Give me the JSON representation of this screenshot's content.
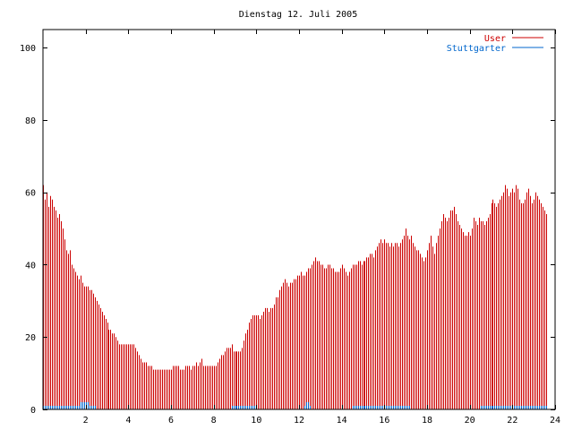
{
  "chart_data": {
    "type": "bar",
    "title": "Dienstag 12. Juli 2005",
    "xlabel": "",
    "ylabel": "",
    "xlim": [
      0,
      24
    ],
    "ylim": [
      0,
      105
    ],
    "x_ticks": [
      2,
      4,
      6,
      8,
      10,
      12,
      14,
      16,
      18,
      20,
      22,
      24
    ],
    "x_tick_labels": [
      "2",
      "4",
      "6",
      "8",
      "10",
      "12",
      "14",
      "16",
      "18",
      "20",
      "22",
      "24"
    ],
    "y_ticks": [
      0,
      20,
      40,
      60,
      80,
      100
    ],
    "y_tick_labels": [
      "0",
      "20",
      "40",
      "60",
      "80",
      "100"
    ],
    "grid": false,
    "legend": "top-right",
    "interval_minutes": 5,
    "series": [
      {
        "name": "User",
        "color": "#cc0000",
        "values": [
          62,
          58,
          60,
          56,
          59,
          58,
          56,
          55,
          53,
          54,
          52,
          50,
          47,
          44,
          43,
          44,
          40,
          39,
          38,
          37,
          36,
          37,
          35,
          34,
          34,
          34,
          33,
          33,
          32,
          31,
          30,
          29,
          28,
          27,
          26,
          25,
          24,
          22,
          22,
          21,
          21,
          20,
          19,
          18,
          18,
          18,
          18,
          18,
          18,
          18,
          18,
          18,
          17,
          16,
          15,
          14,
          13,
          13,
          13,
          12,
          12,
          12,
          11,
          11,
          11,
          11,
          11,
          11,
          11,
          11,
          11,
          11,
          11,
          12,
          12,
          12,
          12,
          11,
          11,
          11,
          12,
          12,
          12,
          11,
          12,
          12,
          13,
          12,
          13,
          14,
          12,
          12,
          12,
          12,
          12,
          12,
          12,
          12,
          13,
          14,
          15,
          15,
          16,
          17,
          17,
          17,
          18,
          16,
          16,
          16,
          16,
          16,
          17,
          19,
          21,
          22,
          24,
          25,
          26,
          26,
          26,
          26,
          25,
          26,
          27,
          28,
          28,
          27,
          28,
          28,
          29,
          31,
          31,
          33,
          34,
          35,
          36,
          35,
          34,
          35,
          35,
          36,
          36,
          37,
          37,
          38,
          37,
          37,
          38,
          39,
          39,
          40,
          41,
          42,
          41,
          41,
          40,
          40,
          39,
          39,
          40,
          40,
          39,
          39,
          38,
          38,
          38,
          39,
          40,
          39,
          38,
          37,
          38,
          39,
          40,
          40,
          40,
          41,
          41,
          40,
          41,
          41,
          42,
          42,
          43,
          43,
          42,
          44,
          45,
          46,
          47,
          46,
          47,
          46,
          46,
          45,
          46,
          45,
          46,
          46,
          45,
          46,
          47,
          48,
          50,
          48,
          47,
          48,
          46,
          45,
          44,
          44,
          43,
          42,
          41,
          42,
          44,
          46,
          48,
          45,
          43,
          46,
          48,
          50,
          52,
          54,
          53,
          52,
          53,
          55,
          55,
          56,
          54,
          52,
          51,
          50,
          49,
          48,
          48,
          49,
          48,
          50,
          53,
          52,
          51,
          53,
          52,
          52,
          51,
          52,
          53,
          54,
          57,
          58,
          57,
          56,
          57,
          58,
          59,
          60,
          62,
          61,
          59,
          60,
          61,
          60,
          62,
          61,
          58,
          57,
          57,
          58,
          60,
          61,
          59,
          57,
          58,
          60,
          59,
          58,
          57,
          56,
          55,
          54
        ]
      },
      {
        "name": "Stuttgarter",
        "color": "#0066cc",
        "values": [
          1,
          1,
          1,
          1,
          1,
          1,
          1,
          1,
          1,
          1,
          1,
          1,
          1,
          1,
          1,
          1,
          1,
          1,
          1,
          1,
          1,
          2,
          2,
          2,
          2,
          2,
          1,
          1,
          1,
          1,
          0,
          0,
          0,
          0,
          0,
          0,
          0,
          0,
          0,
          0,
          0,
          0,
          0,
          0,
          0,
          0,
          0,
          0,
          0,
          0,
          0,
          0,
          0,
          0,
          0,
          0,
          0,
          0,
          0,
          0,
          0,
          0,
          0,
          0,
          0,
          0,
          0,
          0,
          0,
          0,
          0,
          0,
          0,
          0,
          0,
          0,
          0,
          0,
          0,
          0,
          0,
          0,
          0,
          0,
          0,
          0,
          0,
          0,
          0,
          0,
          0,
          0,
          0,
          0,
          0,
          0,
          0,
          0,
          0,
          0,
          0,
          0,
          0,
          0,
          0,
          0,
          1,
          1,
          1,
          1,
          1,
          1,
          1,
          1,
          1,
          1,
          1,
          1,
          1,
          1,
          0,
          0,
          0,
          0,
          0,
          0,
          0,
          0,
          0,
          0,
          0,
          0,
          0,
          0,
          0,
          0,
          0,
          0,
          0,
          0,
          0,
          0,
          0,
          0,
          0,
          0,
          0,
          1,
          2,
          2,
          1,
          0,
          0,
          0,
          0,
          0,
          0,
          0,
          0,
          0,
          0,
          0,
          0,
          0,
          0,
          0,
          0,
          0,
          0,
          0,
          0,
          0,
          0,
          0,
          1,
          1,
          1,
          1,
          1,
          1,
          1,
          1,
          1,
          1,
          1,
          1,
          1,
          1,
          1,
          1,
          1,
          1,
          1,
          1,
          1,
          1,
          1,
          1,
          1,
          1,
          1,
          1,
          1,
          1,
          1,
          1,
          1,
          0,
          0,
          0,
          0,
          0,
          0,
          0,
          0,
          0,
          0,
          0,
          0,
          0,
          0,
          0,
          0,
          0,
          0,
          0,
          0,
          0,
          0,
          0,
          0,
          0,
          0,
          0,
          0,
          0,
          0,
          0,
          0,
          0,
          0,
          0,
          0,
          0,
          0,
          0,
          1,
          1,
          1,
          1,
          1,
          1,
          1,
          1,
          1,
          1,
          1,
          1,
          1,
          1,
          1,
          1,
          1,
          1,
          1,
          1,
          1,
          1,
          1,
          1,
          1,
          1,
          1,
          1,
          1,
          1,
          1,
          1,
          1,
          1,
          1,
          1,
          1,
          1
        ]
      }
    ]
  }
}
